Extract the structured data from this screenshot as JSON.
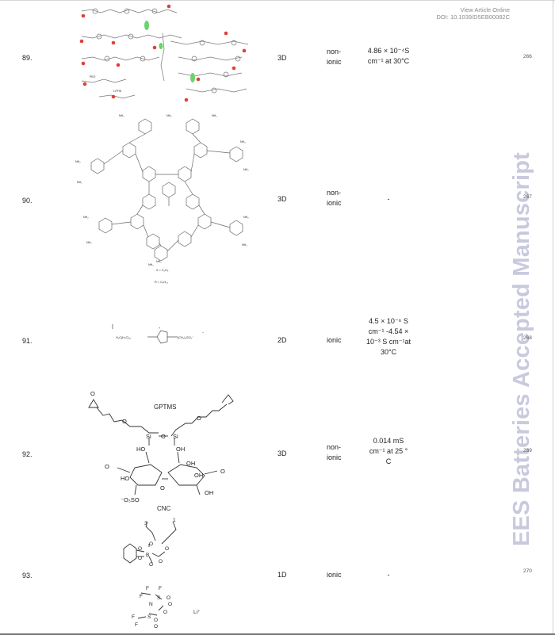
{
  "header": {
    "view_label": "View Article Online",
    "doi": "DOI: 10.1039/D5EB00082C"
  },
  "watermark": "EES Batteries Accepted Manuscript",
  "rows": [
    {
      "number": "89.",
      "dimension": "3D",
      "type": [
        "non-",
        "ionic"
      ],
      "conductivity": [
        "4.86 × 10⁻⁴S",
        "cm⁻¹ at 30°C"
      ],
      "ref": "266",
      "structure_labels": [
        "PEO",
        "LiTFSI"
      ]
    },
    {
      "number": "90.",
      "dimension": "3D",
      "type": [
        "non-",
        "ionic"
      ],
      "conductivity": [
        "-"
      ],
      "ref": "267",
      "structure_labels": [
        "NH₂",
        "X = C₂H₅",
        "R = C₆H₁₃"
      ]
    },
    {
      "number": "91.",
      "dimension": "2D",
      "type": [
        "ionic"
      ],
      "conductivity": [
        "4.5 × 10⁻⁶ S",
        "cm⁻¹ -4.54 ×",
        "10⁻³ S cm⁻¹at",
        "30°C"
      ],
      "ref": "268",
      "structure_labels": [
        "H₃C(H₂C)₁₁",
        "(CH₂)₃SO₃⁻"
      ]
    },
    {
      "number": "92.",
      "dimension": "3D",
      "type": [
        "non-",
        "ionic"
      ],
      "conductivity": [
        "0.014 mS",
        "cm⁻¹  at  25 °",
        "C"
      ],
      "ref": "269",
      "structure_labels": [
        "GPTMS",
        "CNC",
        "Si",
        "O",
        "HO",
        "OH",
        "⁻O₃SO"
      ]
    },
    {
      "number": "93.",
      "dimension": "1D",
      "type": [
        "ionic"
      ],
      "conductivity": [
        "-"
      ],
      "ref": "270",
      "structure_labels": [
        "B",
        "Li⁺",
        "N",
        "F",
        "S",
        "O"
      ]
    }
  ]
}
